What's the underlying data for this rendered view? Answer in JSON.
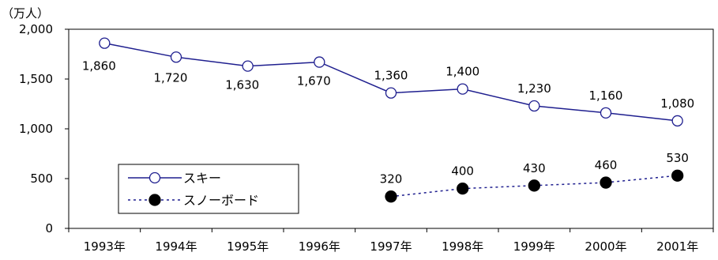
{
  "chart_data": {
    "type": "line",
    "unit_label": "（万人）",
    "categories": [
      "1993年",
      "1994年",
      "1995年",
      "1996年",
      "1997年",
      "1998年",
      "1999年",
      "2000年",
      "2001年"
    ],
    "yticks": [
      "0",
      "500",
      "1,000",
      "1,500",
      "2,000"
    ],
    "ylim": [
      0,
      2000
    ],
    "series": [
      {
        "name": "スキー",
        "values": [
          1860,
          1720,
          1630,
          1670,
          1360,
          1400,
          1230,
          1160,
          1080
        ],
        "labels": [
          "1,860",
          "1,720",
          "1,630",
          "1,670",
          "1,360",
          "1,400",
          "1,230",
          "1,160",
          "1,080"
        ],
        "color": "#1f1f8f",
        "line_style": "solid",
        "marker": "open-circle"
      },
      {
        "name": "スノーボード",
        "values": [
          null,
          null,
          null,
          null,
          320,
          400,
          430,
          460,
          530
        ],
        "labels": [
          "",
          "",
          "",
          "",
          "320",
          "400",
          "430",
          "460",
          "530"
        ],
        "color": "#1f1f8f",
        "line_style": "dotted",
        "marker": "filled-circle"
      }
    ],
    "legend_position": "bottom-left",
    "grid": false
  }
}
